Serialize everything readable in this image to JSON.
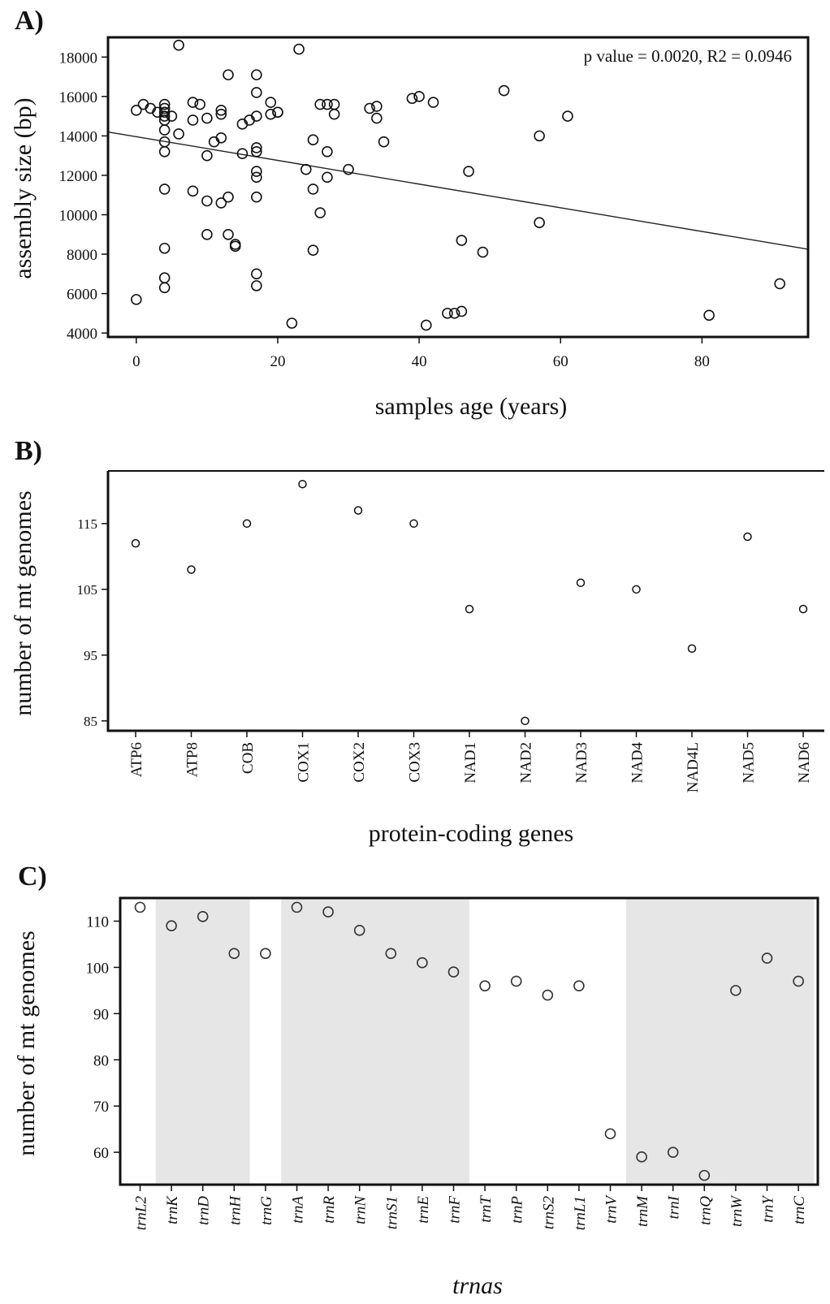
{
  "chart_data": [
    {
      "panel_label": "A)",
      "type": "scatter",
      "xlabel": "samples age (years)",
      "ylabel": "assembly size (bp)",
      "annotation": "p value = 0.0020, R2 = 0.0946",
      "xlim": [
        -4,
        95
      ],
      "ylim": [
        3800,
        19000
      ],
      "xticks": [
        0,
        20,
        40,
        60,
        80
      ],
      "yticks": [
        4000,
        6000,
        8000,
        10000,
        12000,
        14000,
        16000,
        18000
      ],
      "regression_line": {
        "x": [
          -4,
          95
        ],
        "y": [
          14200,
          8250
        ]
      },
      "points": [
        {
          "x": 0,
          "y": 15300
        },
        {
          "x": 0,
          "y": 5700
        },
        {
          "x": 1,
          "y": 15600
        },
        {
          "x": 2,
          "y": 15400
        },
        {
          "x": 3,
          "y": 15200
        },
        {
          "x": 4,
          "y": 15600
        },
        {
          "x": 4,
          "y": 15400
        },
        {
          "x": 4,
          "y": 15200
        },
        {
          "x": 4,
          "y": 15000
        },
        {
          "x": 4,
          "y": 14800
        },
        {
          "x": 4,
          "y": 14300
        },
        {
          "x": 4,
          "y": 13700
        },
        {
          "x": 4,
          "y": 13200
        },
        {
          "x": 4,
          "y": 11300
        },
        {
          "x": 4,
          "y": 8300
        },
        {
          "x": 4,
          "y": 6800
        },
        {
          "x": 4,
          "y": 6300
        },
        {
          "x": 5,
          "y": 15000
        },
        {
          "x": 6,
          "y": 18600
        },
        {
          "x": 6,
          "y": 14100
        },
        {
          "x": 8,
          "y": 15700
        },
        {
          "x": 8,
          "y": 14800
        },
        {
          "x": 8,
          "y": 11200
        },
        {
          "x": 9,
          "y": 15600
        },
        {
          "x": 10,
          "y": 14900
        },
        {
          "x": 10,
          "y": 13000
        },
        {
          "x": 10,
          "y": 10700
        },
        {
          "x": 10,
          "y": 9000
        },
        {
          "x": 11,
          "y": 13700
        },
        {
          "x": 12,
          "y": 15300
        },
        {
          "x": 12,
          "y": 15100
        },
        {
          "x": 12,
          "y": 13900
        },
        {
          "x": 12,
          "y": 10600
        },
        {
          "x": 13,
          "y": 17100
        },
        {
          "x": 13,
          "y": 10900
        },
        {
          "x": 13,
          "y": 9000
        },
        {
          "x": 14,
          "y": 8500
        },
        {
          "x": 14,
          "y": 8400
        },
        {
          "x": 15,
          "y": 14600
        },
        {
          "x": 15,
          "y": 13100
        },
        {
          "x": 16,
          "y": 14800
        },
        {
          "x": 17,
          "y": 17100
        },
        {
          "x": 17,
          "y": 16200
        },
        {
          "x": 17,
          "y": 15000
        },
        {
          "x": 17,
          "y": 13400
        },
        {
          "x": 17,
          "y": 13200
        },
        {
          "x": 17,
          "y": 12200
        },
        {
          "x": 17,
          "y": 11900
        },
        {
          "x": 17,
          "y": 10900
        },
        {
          "x": 17,
          "y": 7000
        },
        {
          "x": 17,
          "y": 6400
        },
        {
          "x": 19,
          "y": 15700
        },
        {
          "x": 19,
          "y": 15100
        },
        {
          "x": 20,
          "y": 15200
        },
        {
          "x": 20,
          "y": 15200
        },
        {
          "x": 22,
          "y": 4500
        },
        {
          "x": 23,
          "y": 18400
        },
        {
          "x": 24,
          "y": 12300
        },
        {
          "x": 25,
          "y": 13800
        },
        {
          "x": 25,
          "y": 11300
        },
        {
          "x": 25,
          "y": 8200
        },
        {
          "x": 26,
          "y": 15600
        },
        {
          "x": 26,
          "y": 10100
        },
        {
          "x": 27,
          "y": 15600
        },
        {
          "x": 27,
          "y": 13200
        },
        {
          "x": 27,
          "y": 11900
        },
        {
          "x": 28,
          "y": 15600
        },
        {
          "x": 28,
          "y": 15100
        },
        {
          "x": 30,
          "y": 12300
        },
        {
          "x": 33,
          "y": 15400
        },
        {
          "x": 34,
          "y": 15500
        },
        {
          "x": 34,
          "y": 14900
        },
        {
          "x": 35,
          "y": 13700
        },
        {
          "x": 39,
          "y": 15900
        },
        {
          "x": 40,
          "y": 16000
        },
        {
          "x": 41,
          "y": 4400
        },
        {
          "x": 42,
          "y": 15700
        },
        {
          "x": 44,
          "y": 5000
        },
        {
          "x": 45,
          "y": 5000
        },
        {
          "x": 46,
          "y": 5100
        },
        {
          "x": 46,
          "y": 8700
        },
        {
          "x": 47,
          "y": 12200
        },
        {
          "x": 49,
          "y": 8100
        },
        {
          "x": 52,
          "y": 16300
        },
        {
          "x": 57,
          "y": 14000
        },
        {
          "x": 57,
          "y": 9600
        },
        {
          "x": 61,
          "y": 15000
        },
        {
          "x": 81,
          "y": 4900
        },
        {
          "x": 91,
          "y": 6500
        }
      ]
    },
    {
      "panel_label": "B)",
      "type": "scatter",
      "xlabel": "protein-coding genes",
      "ylabel": "number of mt genomes",
      "ylim": [
        83.5,
        123
      ],
      "yticks": [
        85,
        95,
        105,
        115
      ],
      "categories": [
        "ATP6",
        "ATP8",
        "COB",
        "COX1",
        "COX2",
        "COX3",
        "NAD1",
        "NAD2",
        "NAD3",
        "NAD4",
        "NAD4L",
        "NAD5",
        "NAD6"
      ],
      "values": [
        112,
        108,
        115,
        121,
        117,
        115,
        102,
        85,
        106,
        105,
        96,
        113,
        102
      ]
    },
    {
      "panel_label": "C)",
      "type": "scatter",
      "xlabel": "trnas",
      "ylabel": "number of mt genomes",
      "ylim": [
        53,
        115
      ],
      "yticks": [
        60,
        70,
        80,
        90,
        100,
        110
      ],
      "categories": [
        "trnL2",
        "trnK",
        "trnD",
        "trnH",
        "trnG",
        "trnA",
        "trnR",
        "trnN",
        "trnS1",
        "trnE",
        "trnF",
        "trnT",
        "trnP",
        "trnS2",
        "trnL1",
        "trnV",
        "trnM",
        "trnI",
        "trnQ",
        "trnW",
        "trnY",
        "trnC"
      ],
      "values": [
        113,
        109,
        111,
        103,
        103,
        113,
        112,
        108,
        103,
        101,
        99,
        96,
        97,
        94,
        96,
        64,
        59,
        60,
        55,
        95,
        102,
        97
      ],
      "shaded_groups": [
        [
          "trnK",
          "trnH"
        ],
        [
          "trnA",
          "trnF"
        ],
        [
          "trnM",
          "trnQ"
        ],
        [
          "trnW",
          "trnC"
        ]
      ],
      "shade_color": "#e6e6e6"
    }
  ]
}
